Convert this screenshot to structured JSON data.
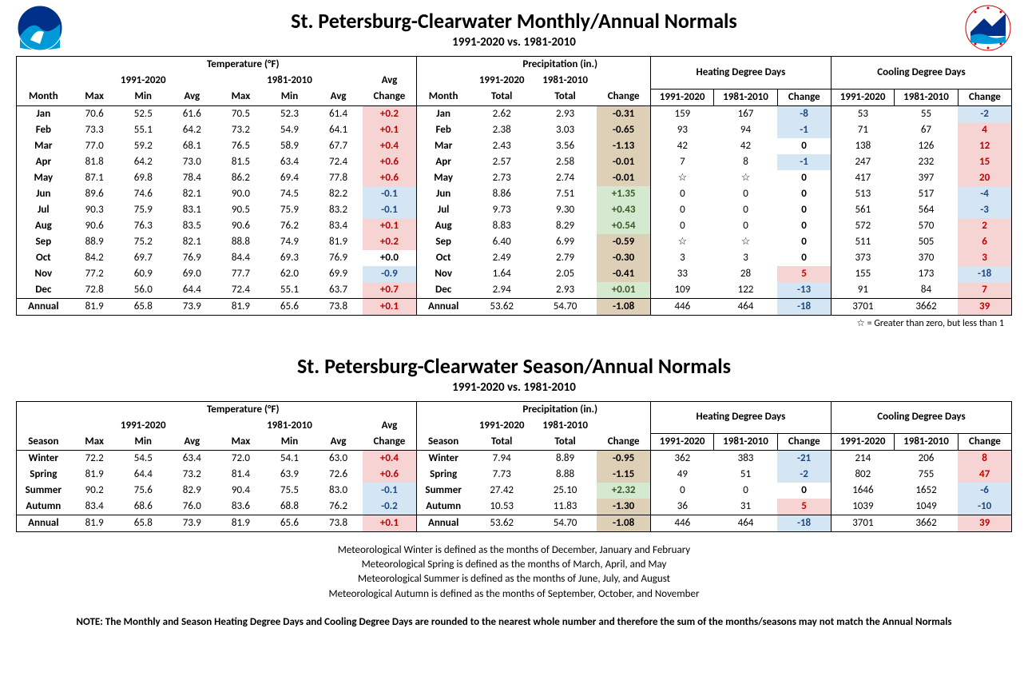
{
  "title_main": "St. Petersburg-Clearwater Monthly/Annual Normals",
  "title_sub": "1991-2020 vs. 1981-2010",
  "title_main2": "St. Petersburg-Clearwater Season/Annual Normals",
  "title_sub2": "1991-2020 vs. 1981-2010",
  "legend_star": "☆ = Greater than zero, but less than 1",
  "headers": {
    "temp": "Temperature (°F)",
    "precip": "Precipitation (in.)",
    "hdd": "Heating Degree Days",
    "cdd": "Cooling Degree Days",
    "p1": "1991-2020",
    "p2": "1981-2010",
    "month": "Month",
    "season": "Season",
    "max": "Max",
    "min": "Min",
    "avg": "Avg",
    "avgch": "Avg\nChange",
    "total": "Total",
    "change": "Change"
  },
  "monthly": [
    {
      "m": "Jan",
      "t1max": "70.6",
      "t1min": "52.5",
      "t1avg": "61.6",
      "t2max": "70.5",
      "t2min": "52.3",
      "t2avg": "61.4",
      "tch": "+0.2",
      "tchc": "pos-red",
      "p1": "2.62",
      "p2": "2.93",
      "pch": "-0.31",
      "pchc": "neg-tan",
      "h1": "159",
      "h2": "167",
      "hch": "-8",
      "hchc": "neg-blue",
      "c1": "53",
      "c2": "55",
      "cch": "-2",
      "cchc": "neg-blue"
    },
    {
      "m": "Feb",
      "t1max": "73.3",
      "t1min": "55.1",
      "t1avg": "64.2",
      "t2max": "73.2",
      "t2min": "54.9",
      "t2avg": "64.1",
      "tch": "+0.1",
      "tchc": "pos-red",
      "p1": "2.38",
      "p2": "3.03",
      "pch": "-0.65",
      "pchc": "neg-tan",
      "h1": "93",
      "h2": "94",
      "hch": "-1",
      "hchc": "neg-blue",
      "c1": "71",
      "c2": "67",
      "cch": "4",
      "cchc": "pos-red"
    },
    {
      "m": "Mar",
      "t1max": "77.0",
      "t1min": "59.2",
      "t1avg": "68.1",
      "t2max": "76.5",
      "t2min": "58.9",
      "t2avg": "67.7",
      "tch": "+0.4",
      "tchc": "pos-red",
      "p1": "2.43",
      "p2": "3.56",
      "pch": "-1.13",
      "pchc": "neg-tan",
      "h1": "42",
      "h2": "42",
      "hch": "0",
      "hchc": "zero",
      "c1": "138",
      "c2": "126",
      "cch": "12",
      "cchc": "pos-red"
    },
    {
      "m": "Apr",
      "t1max": "81.8",
      "t1min": "64.2",
      "t1avg": "73.0",
      "t2max": "81.5",
      "t2min": "63.4",
      "t2avg": "72.4",
      "tch": "+0.6",
      "tchc": "pos-red",
      "p1": "2.57",
      "p2": "2.58",
      "pch": "-0.01",
      "pchc": "neg-tan",
      "h1": "7",
      "h2": "8",
      "hch": "-1",
      "hchc": "neg-blue",
      "c1": "247",
      "c2": "232",
      "cch": "15",
      "cchc": "pos-red"
    },
    {
      "m": "May",
      "t1max": "87.1",
      "t1min": "69.8",
      "t1avg": "78.4",
      "t2max": "86.2",
      "t2min": "69.4",
      "t2avg": "77.8",
      "tch": "+0.6",
      "tchc": "pos-red",
      "p1": "2.73",
      "p2": "2.74",
      "pch": "-0.01",
      "pchc": "neg-tan",
      "h1": "☆",
      "h2": "☆",
      "hch": "0",
      "hchc": "zero",
      "c1": "417",
      "c2": "397",
      "cch": "20",
      "cchc": "pos-red"
    },
    {
      "m": "Jun",
      "t1max": "89.6",
      "t1min": "74.6",
      "t1avg": "82.1",
      "t2max": "90.0",
      "t2min": "74.5",
      "t2avg": "82.2",
      "tch": "-0.1",
      "tchc": "neg-blue",
      "p1": "8.86",
      "p2": "7.51",
      "pch": "+1.35",
      "pchc": "pos-green",
      "h1": "0",
      "h2": "0",
      "hch": "0",
      "hchc": "zero",
      "c1": "513",
      "c2": "517",
      "cch": "-4",
      "cchc": "neg-blue"
    },
    {
      "m": "Jul",
      "t1max": "90.3",
      "t1min": "75.9",
      "t1avg": "83.1",
      "t2max": "90.5",
      "t2min": "75.9",
      "t2avg": "83.2",
      "tch": "-0.1",
      "tchc": "neg-blue",
      "p1": "9.73",
      "p2": "9.30",
      "pch": "+0.43",
      "pchc": "pos-green",
      "h1": "0",
      "h2": "0",
      "hch": "0",
      "hchc": "zero",
      "c1": "561",
      "c2": "564",
      "cch": "-3",
      "cchc": "neg-blue"
    },
    {
      "m": "Aug",
      "t1max": "90.6",
      "t1min": "76.3",
      "t1avg": "83.5",
      "t2max": "90.6",
      "t2min": "76.2",
      "t2avg": "83.4",
      "tch": "+0.1",
      "tchc": "pos-red",
      "p1": "8.83",
      "p2": "8.29",
      "pch": "+0.54",
      "pchc": "pos-green",
      "h1": "0",
      "h2": "0",
      "hch": "0",
      "hchc": "zero",
      "c1": "572",
      "c2": "570",
      "cch": "2",
      "cchc": "pos-red"
    },
    {
      "m": "Sep",
      "t1max": "88.9",
      "t1min": "75.2",
      "t1avg": "82.1",
      "t2max": "88.8",
      "t2min": "74.9",
      "t2avg": "81.9",
      "tch": "+0.2",
      "tchc": "pos-red",
      "p1": "6.40",
      "p2": "6.99",
      "pch": "-0.59",
      "pchc": "neg-tan",
      "h1": "☆",
      "h2": "☆",
      "hch": "0",
      "hchc": "zero",
      "c1": "511",
      "c2": "505",
      "cch": "6",
      "cchc": "pos-red"
    },
    {
      "m": "Oct",
      "t1max": "84.2",
      "t1min": "69.7",
      "t1avg": "76.9",
      "t2max": "84.4",
      "t2min": "69.3",
      "t2avg": "76.9",
      "tch": "+0.0",
      "tchc": "zero",
      "p1": "2.49",
      "p2": "2.79",
      "pch": "-0.30",
      "pchc": "neg-tan",
      "h1": "3",
      "h2": "3",
      "hch": "0",
      "hchc": "zero",
      "c1": "373",
      "c2": "370",
      "cch": "3",
      "cchc": "pos-red"
    },
    {
      "m": "Nov",
      "t1max": "77.2",
      "t1min": "60.9",
      "t1avg": "69.0",
      "t2max": "77.7",
      "t2min": "62.0",
      "t2avg": "69.9",
      "tch": "-0.9",
      "tchc": "neg-blue",
      "p1": "1.64",
      "p2": "2.05",
      "pch": "-0.41",
      "pchc": "neg-tan",
      "h1": "33",
      "h2": "28",
      "hch": "5",
      "hchc": "pos-red",
      "c1": "155",
      "c2": "173",
      "cch": "-18",
      "cchc": "neg-blue"
    },
    {
      "m": "Dec",
      "t1max": "72.8",
      "t1min": "56.0",
      "t1avg": "64.4",
      "t2max": "72.4",
      "t2min": "55.1",
      "t2avg": "63.7",
      "tch": "+0.7",
      "tchc": "pos-red",
      "p1": "2.94",
      "p2": "2.93",
      "pch": "+0.01",
      "pchc": "pos-green",
      "h1": "109",
      "h2": "122",
      "hch": "-13",
      "hchc": "neg-blue",
      "c1": "91",
      "c2": "84",
      "cch": "7",
      "cchc": "pos-red"
    }
  ],
  "monthly_annual": {
    "m": "Annual",
    "t1max": "81.9",
    "t1min": "65.8",
    "t1avg": "73.9",
    "t2max": "81.9",
    "t2min": "65.6",
    "t2avg": "73.8",
    "tch": "+0.1",
    "tchc": "pos-red",
    "p1": "53.62",
    "p2": "54.70",
    "pch": "-1.08",
    "pchc": "neg-tan",
    "h1": "446",
    "h2": "464",
    "hch": "-18",
    "hchc": "neg-blue",
    "c1": "3701",
    "c2": "3662",
    "cch": "39",
    "cchc": "pos-red"
  },
  "seasonal": [
    {
      "m": "Winter",
      "t1max": "72.2",
      "t1min": "54.5",
      "t1avg": "63.4",
      "t2max": "72.0",
      "t2min": "54.1",
      "t2avg": "63.0",
      "tch": "+0.4",
      "tchc": "pos-red",
      "p1": "7.94",
      "p2": "8.89",
      "pch": "-0.95",
      "pchc": "neg-tan",
      "h1": "362",
      "h2": "383",
      "hch": "-21",
      "hchc": "neg-blue",
      "c1": "214",
      "c2": "206",
      "cch": "8",
      "cchc": "pos-red"
    },
    {
      "m": "Spring",
      "t1max": "81.9",
      "t1min": "64.4",
      "t1avg": "73.2",
      "t2max": "81.4",
      "t2min": "63.9",
      "t2avg": "72.6",
      "tch": "+0.6",
      "tchc": "pos-red",
      "p1": "7.73",
      "p2": "8.88",
      "pch": "-1.15",
      "pchc": "neg-tan",
      "h1": "49",
      "h2": "51",
      "hch": "-2",
      "hchc": "neg-blue",
      "c1": "802",
      "c2": "755",
      "cch": "47",
      "cchc": "pos-red"
    },
    {
      "m": "Summer",
      "t1max": "90.2",
      "t1min": "75.6",
      "t1avg": "82.9",
      "t2max": "90.4",
      "t2min": "75.5",
      "t2avg": "83.0",
      "tch": "-0.1",
      "tchc": "neg-blue",
      "p1": "27.42",
      "p2": "25.10",
      "pch": "+2.32",
      "pchc": "pos-green",
      "h1": "0",
      "h2": "0",
      "hch": "0",
      "hchc": "zero",
      "c1": "1646",
      "c2": "1652",
      "cch": "-6",
      "cchc": "neg-blue"
    },
    {
      "m": "Autumn",
      "t1max": "83.4",
      "t1min": "68.6",
      "t1avg": "76.0",
      "t2max": "83.6",
      "t2min": "68.8",
      "t2avg": "76.2",
      "tch": "-0.2",
      "tchc": "neg-blue",
      "p1": "10.53",
      "p2": "11.83",
      "pch": "-1.30",
      "pchc": "neg-tan",
      "h1": "36",
      "h2": "31",
      "hch": "5",
      "hchc": "pos-red",
      "c1": "1039",
      "c2": "1049",
      "cch": "-10",
      "cchc": "neg-blue"
    }
  ],
  "seasonal_annual": {
    "m": "Annual",
    "t1max": "81.9",
    "t1min": "65.8",
    "t1avg": "73.9",
    "t2max": "81.9",
    "t2min": "65.6",
    "t2avg": "73.8",
    "tch": "+0.1",
    "tchc": "pos-red",
    "p1": "53.62",
    "p2": "54.70",
    "pch": "-1.08",
    "pchc": "neg-tan",
    "h1": "446",
    "h2": "464",
    "hch": "-18",
    "hchc": "neg-blue",
    "c1": "3701",
    "c2": "3662",
    "cch": "39",
    "cchc": "pos-red"
  },
  "notes": [
    "Meteorological Winter is defined as the months of December, January and February",
    "Meteorological Spring is defined as the months of March, April, and May",
    "Meteorological Summer is defined as the months of June, July, and August",
    "Meteorological Autumn is defined as the months of September, October, and November"
  ],
  "final_note": "NOTE:  The Monthly and Season Heating Degree Days and Cooling Degree Days are rounded to the nearest whole number and therefore the sum of the months/seasons may not match the Annual Normals"
}
